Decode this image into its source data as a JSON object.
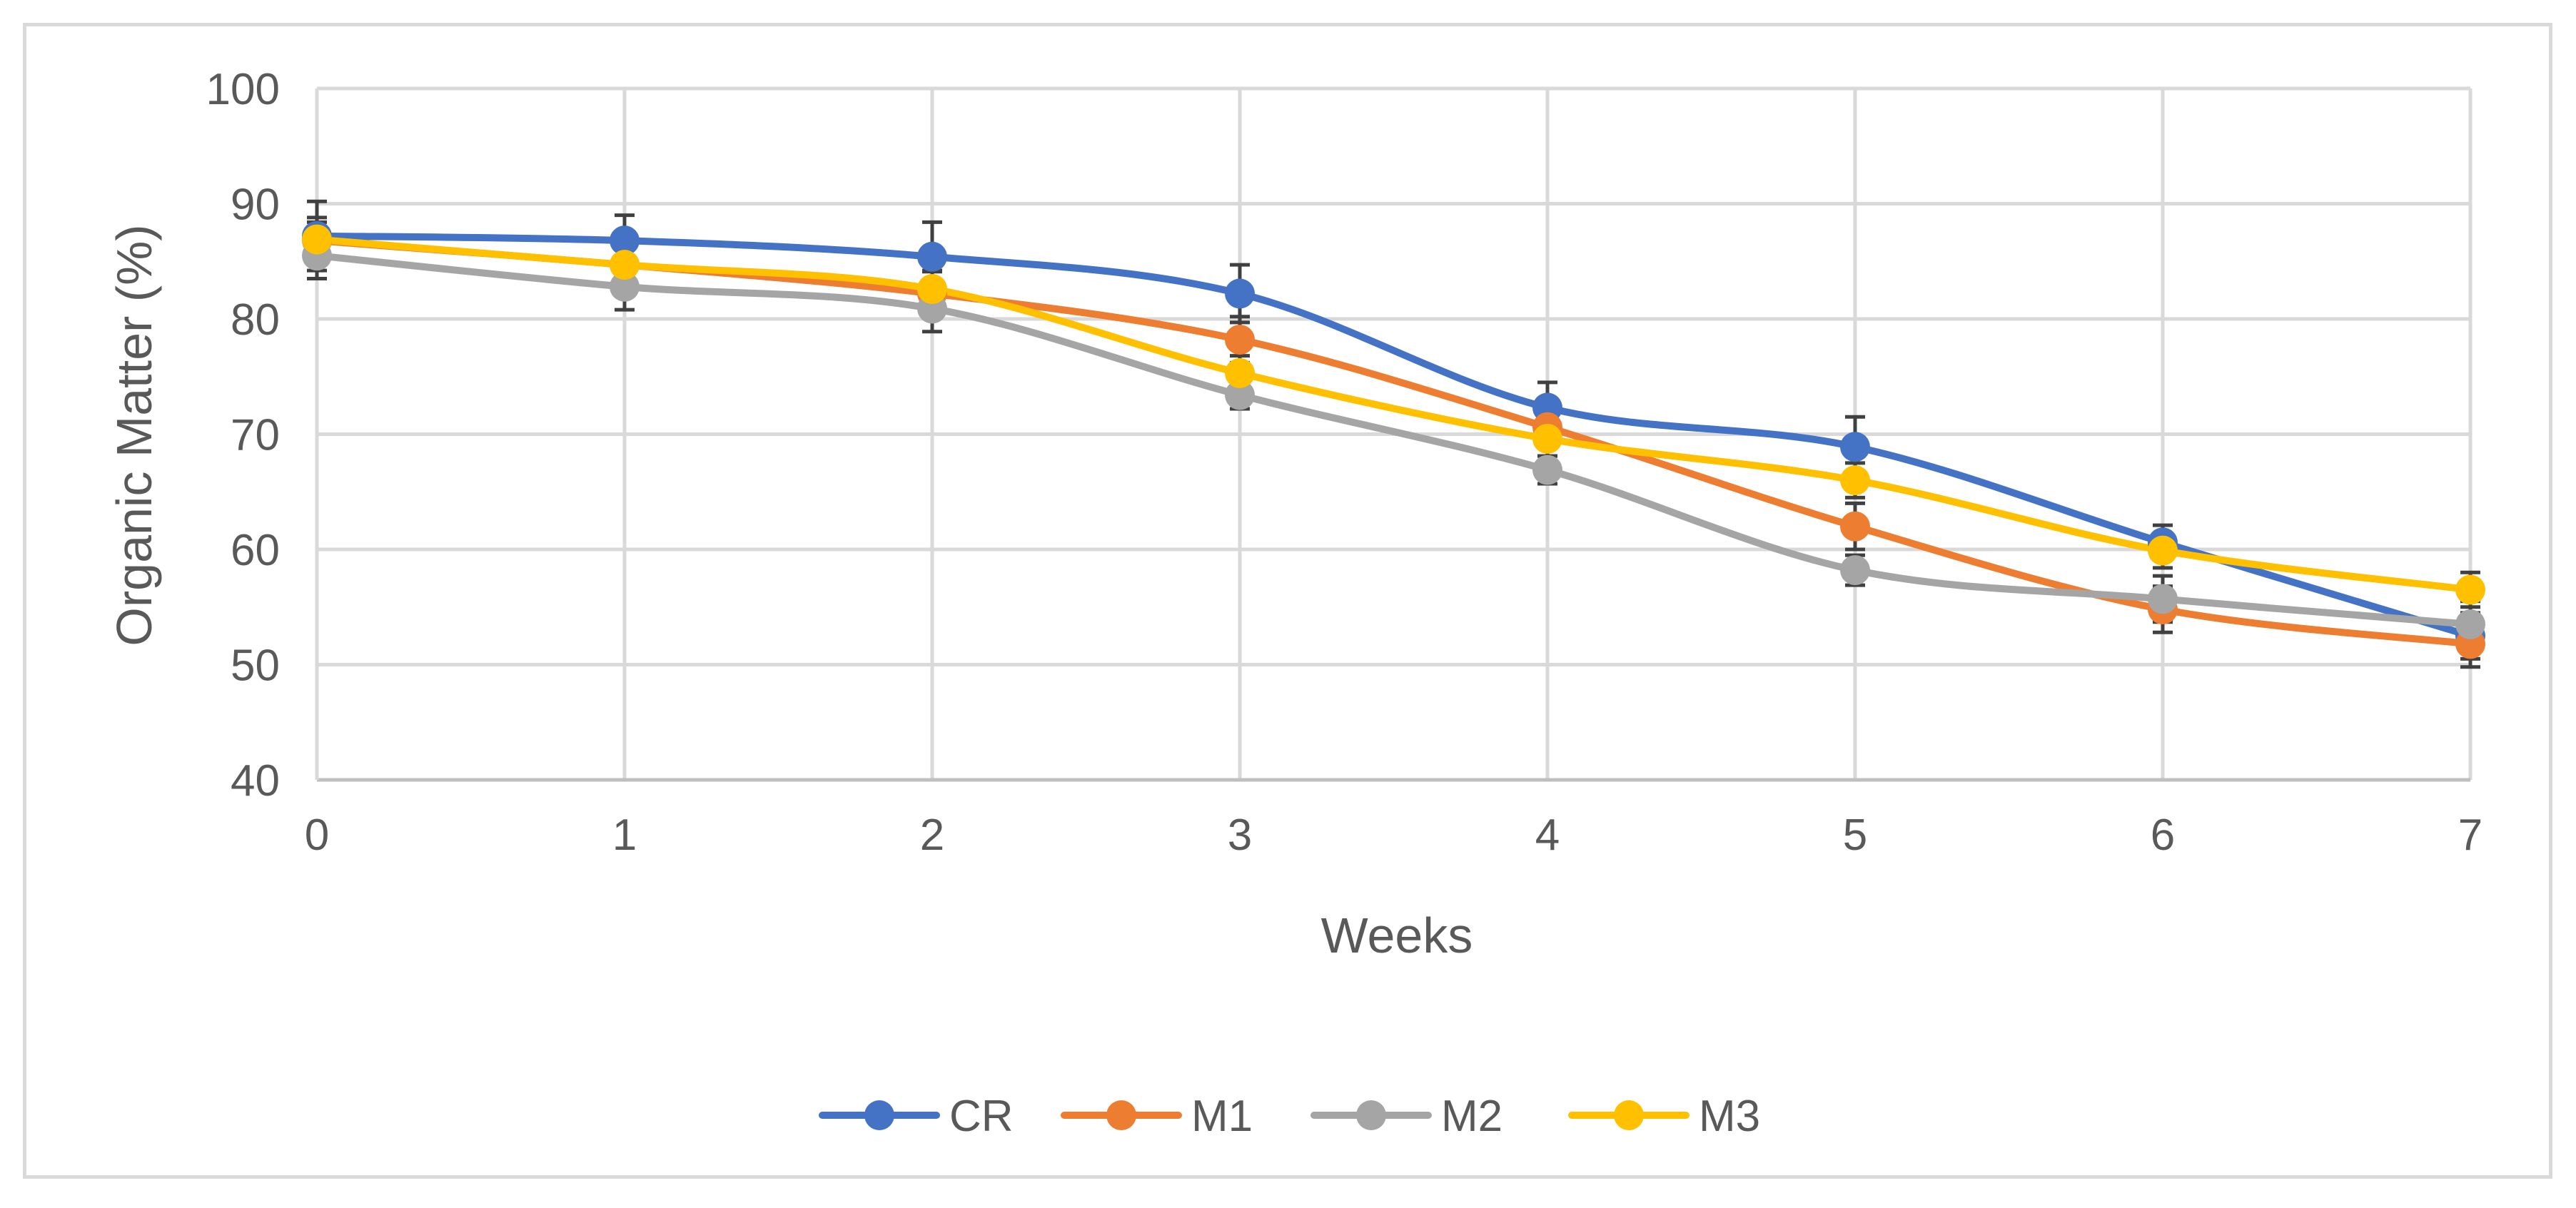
{
  "chart_data": {
    "type": "line",
    "title": "",
    "xlabel": "Weeks",
    "ylabel": "Organic Matter (%)",
    "x": [
      0,
      1,
      2,
      3,
      4,
      5,
      6,
      7
    ],
    "xticks": [
      "0",
      "1",
      "2",
      "3",
      "4",
      "5",
      "6",
      "7"
    ],
    "xlim": [
      0,
      7
    ],
    "ylim": [
      40,
      100
    ],
    "yticks": [
      "40",
      "50",
      "60",
      "70",
      "80",
      "90",
      "100"
    ],
    "grid": true,
    "smooth": true,
    "legend_position": "bottom",
    "error_bars": true,
    "series": [
      {
        "name": "CR",
        "color": "#4472C4",
        "values": [
          87.2,
          86.8,
          85.4,
          82.2,
          72.3,
          68.9,
          60.6,
          52.5
        ],
        "errors": [
          3.0,
          2.2,
          3.0,
          2.5,
          2.2,
          2.6,
          1.5,
          2.0
        ]
      },
      {
        "name": "M1",
        "color": "#ED7D31",
        "values": [
          86.8,
          84.7,
          82.2,
          78.2,
          70.6,
          62.0,
          54.8,
          51.8
        ],
        "errors": [
          2.0,
          2.0,
          2.0,
          2.0,
          1.5,
          2.0,
          2.0,
          2.0
        ]
      },
      {
        "name": "M2",
        "color": "#A5A5A5",
        "values": [
          85.5,
          82.8,
          80.9,
          73.4,
          66.9,
          58.2,
          55.7,
          53.5
        ],
        "errors": [
          2.0,
          2.0,
          2.0,
          1.2,
          1.2,
          1.3,
          2.0,
          2.0
        ]
      },
      {
        "name": "M3",
        "color": "#FFC000",
        "values": [
          86.9,
          84.7,
          82.6,
          75.3,
          69.6,
          66.0,
          59.9,
          56.5
        ],
        "errors": [
          1.5,
          1.5,
          1.5,
          1.5,
          1.5,
          1.5,
          1.5,
          1.5
        ]
      }
    ]
  }
}
